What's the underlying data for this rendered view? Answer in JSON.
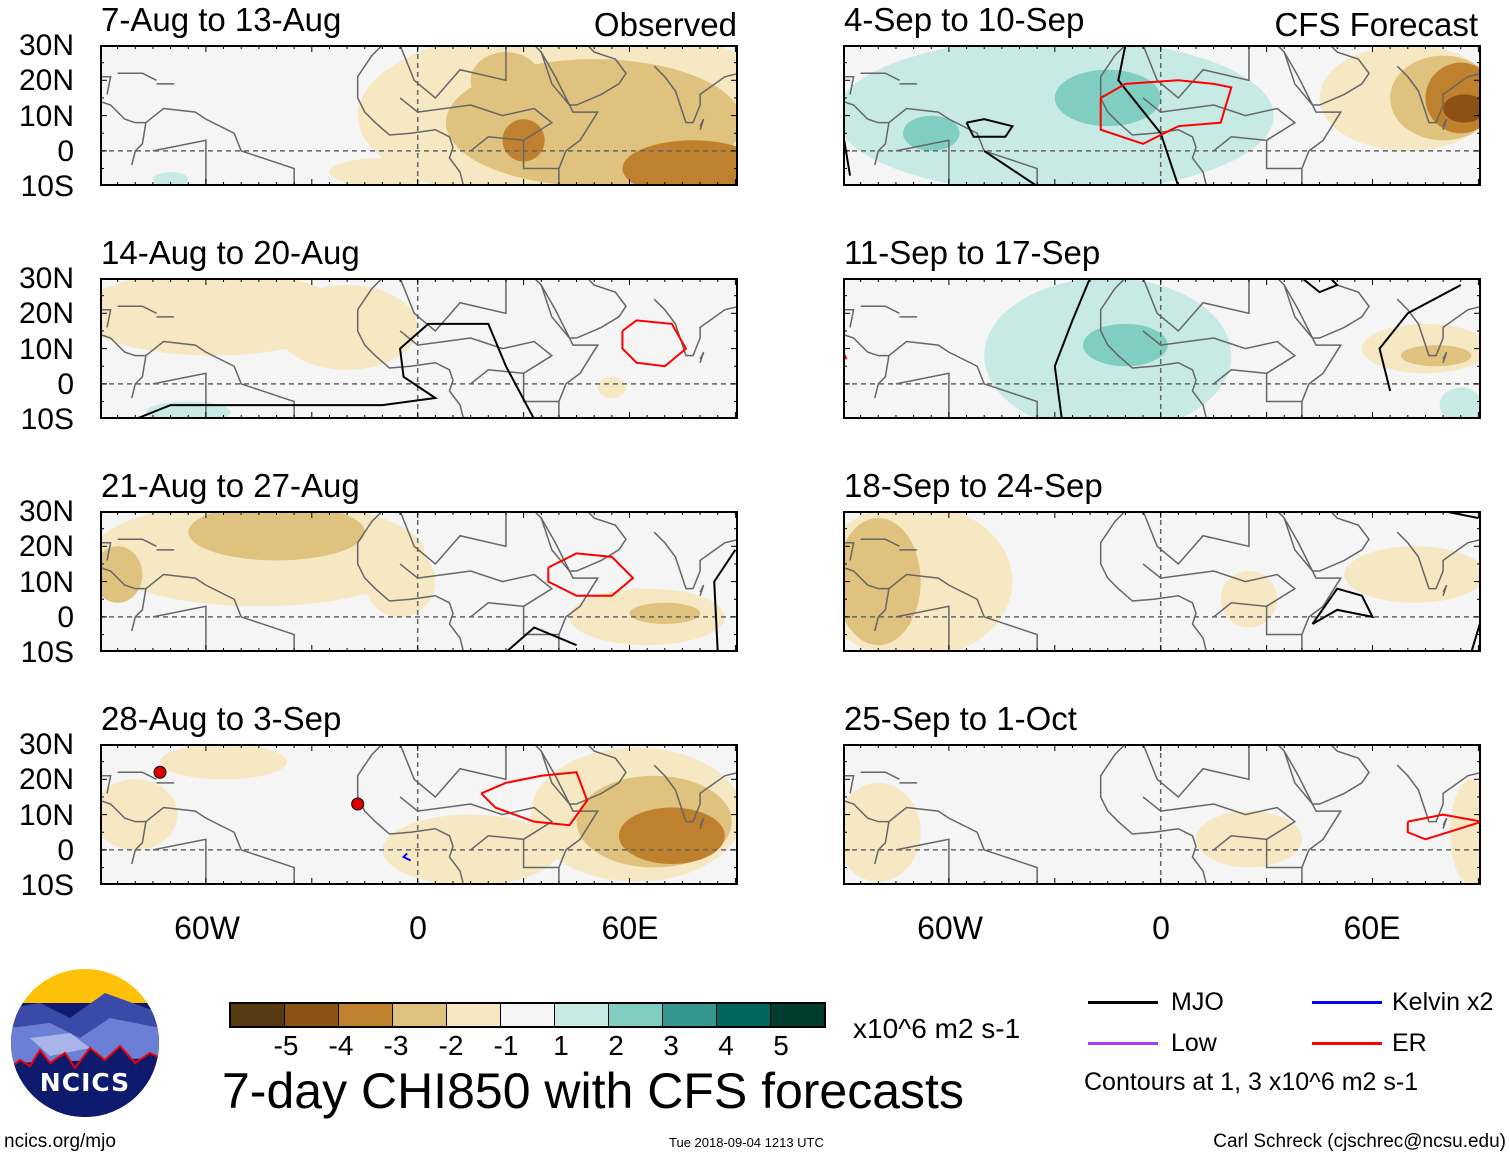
{
  "title": "7-day CHI850 with CFS forecasts",
  "chart_data": {
    "type": "heatmap",
    "title": "7-day CHI850 with CFS forecasts",
    "units": "x10^6 m2 s-1",
    "lat_ticks": [
      "30N",
      "20N",
      "10N",
      "0",
      "10S"
    ],
    "lon_ticks": [
      "60W",
      "0",
      "60E"
    ],
    "lat_range": [
      -10,
      30
    ],
    "lon_range": [
      -90,
      90
    ],
    "columns": [
      {
        "label": "Observed"
      },
      {
        "label": "CFS Forecast"
      }
    ],
    "panels": [
      {
        "title": "7-Aug to 13-Aug",
        "column": "Observed"
      },
      {
        "title": "14-Aug to 20-Aug",
        "column": "Observed"
      },
      {
        "title": "21-Aug to 27-Aug",
        "column": "Observed"
      },
      {
        "title": "28-Aug to 3-Sep",
        "column": "Observed"
      },
      {
        "title": "4-Sep to 10-Sep",
        "column": "CFS Forecast"
      },
      {
        "title": "11-Sep to 17-Sep",
        "column": "CFS Forecast"
      },
      {
        "title": "18-Sep to 24-Sep",
        "column": "CFS Forecast"
      },
      {
        "title": "25-Sep to 1-Oct",
        "column": "CFS Forecast"
      }
    ],
    "colorbar": {
      "labels": [
        "-5",
        "-4",
        "-3",
        "-2",
        "-1",
        "1",
        "2",
        "3",
        "4",
        "5"
      ],
      "colors": [
        "#573a12",
        "#8c5214",
        "#bf812d",
        "#dfc27d",
        "#f6e8c3",
        "#f5f5f5",
        "#c7eae5",
        "#80cdc1",
        "#35978f",
        "#01665e",
        "#003c30"
      ]
    },
    "legend": [
      {
        "label": "MJO",
        "color": "#000000"
      },
      {
        "label": "Kelvin x2",
        "color": "#0000ff"
      },
      {
        "label": "Low",
        "color": "#a040ff"
      },
      {
        "label": "ER",
        "color": "#ff0000"
      }
    ],
    "contour_note": "Contours at 1, 3 x10^6 m2 s-1"
  },
  "footer": {
    "url": "ncics.org/mjo",
    "timestamp": "Tue 2018-09-04 1213 UTC",
    "author": "Carl Schreck (cjschrec@ncsu.edu)",
    "logo_text": "NCICS"
  }
}
